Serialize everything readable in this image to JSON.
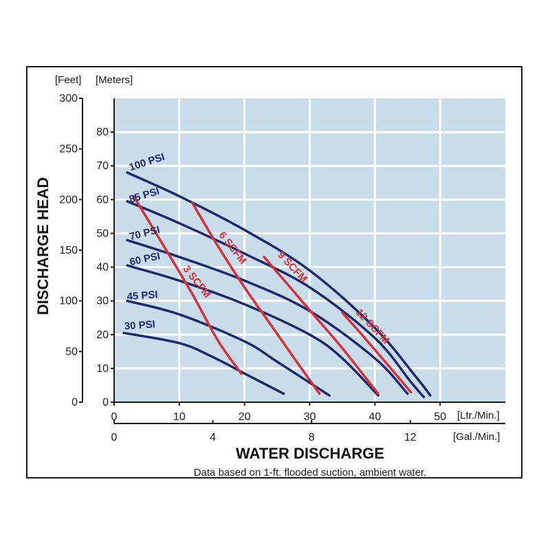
{
  "chart_data": {
    "type": "line",
    "title": "",
    "xlabel": "WATER DISCHARGE",
    "ylabel": "DISCHARGE HEAD",
    "x_units": [
      "[Ltr./Min.]",
      "[Gal./Min.]"
    ],
    "y_units": [
      "[Feet]",
      "[Meters]"
    ],
    "note": "Data based on 1-ft. flooded suction, ambient water.",
    "xlim": [
      0,
      60
    ],
    "ylim_meters": [
      0,
      90
    ],
    "ylim_feet": [
      0,
      300
    ],
    "x_ticks": [
      0,
      10,
      20,
      30,
      40,
      50
    ],
    "x2_ticks": [
      0,
      4,
      8,
      12
    ],
    "y_ticks_meters": [
      0,
      10,
      20,
      30,
      40,
      50,
      60,
      70,
      80
    ],
    "y_ticks_feet": [
      0,
      50,
      100,
      150,
      200,
      250,
      300
    ],
    "grid": true,
    "colors": {
      "psi": "#1c2a6b",
      "scfm": "#d8303a",
      "plot_bg": "#c9dcea",
      "grid": "#ffffff"
    },
    "series": [
      {
        "name": "100 PSI",
        "group": "psi",
        "x": [
          2,
          10,
          20,
          30,
          40,
          46.5,
          48.5
        ],
        "y": [
          68,
          61,
          51,
          39,
          22,
          7,
          2
        ]
      },
      {
        "name": "85 PSI",
        "group": "psi",
        "x": [
          2,
          10,
          20,
          30,
          40,
          45.5,
          47.5
        ],
        "y": [
          59.5,
          53,
          44,
          34,
          19,
          6,
          1.5
        ]
      },
      {
        "name": "70 PSI",
        "group": "psi",
        "x": [
          2,
          10,
          20,
          30,
          40,
          45
        ],
        "y": [
          48,
          43,
          36,
          27,
          13,
          2.5
        ]
      },
      {
        "name": "60 PSI",
        "group": "psi",
        "x": [
          2,
          10,
          20,
          30,
          35,
          40.5
        ],
        "y": [
          40.5,
          36,
          29,
          20,
          13,
          2
        ]
      },
      {
        "name": "45 PSI",
        "group": "psi",
        "x": [
          2,
          10,
          20,
          25,
          33
        ],
        "y": [
          30,
          26,
          18,
          12,
          2
        ]
      },
      {
        "name": "30 PSI",
        "group": "psi",
        "x": [
          1.5,
          10,
          15,
          20,
          26
        ],
        "y": [
          20.5,
          17.5,
          13.5,
          8.5,
          2.5
        ]
      },
      {
        "name": "3 SCFM",
        "group": "scfm",
        "x": [
          3,
          8,
          12,
          16,
          19.5
        ],
        "y": [
          61,
          45,
          32,
          18,
          8.5
        ]
      },
      {
        "name": "6 SCFM",
        "group": "scfm",
        "x": [
          12,
          16,
          20,
          24,
          28,
          31.5
        ],
        "y": [
          59,
          46,
          34,
          23,
          12,
          2.5
        ]
      },
      {
        "name": "9 SCFM",
        "group": "scfm",
        "x": [
          23,
          27,
          31,
          35,
          40.5
        ],
        "y": [
          43,
          34,
          25,
          16,
          2.5
        ]
      },
      {
        "name": "12 SCFM",
        "group": "scfm",
        "x": [
          35,
          38,
          42,
          45.5
        ],
        "y": [
          26.5,
          20,
          11,
          3
        ]
      }
    ]
  }
}
